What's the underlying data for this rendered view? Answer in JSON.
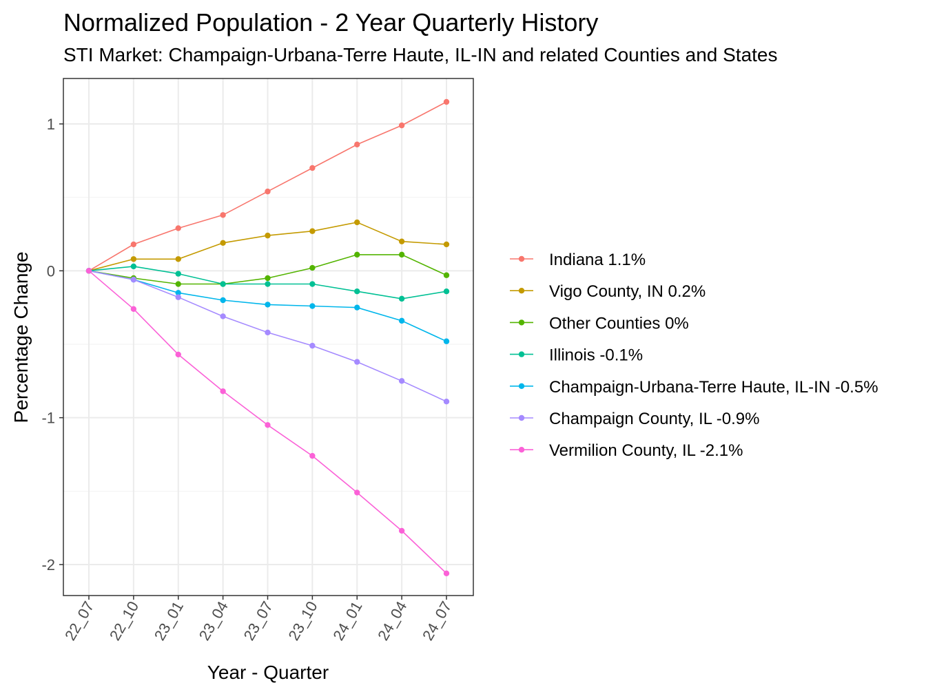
{
  "chart_data": {
    "type": "line",
    "title": "Normalized Population - 2 Year Quarterly History",
    "subtitle": "STI Market: Champaign-Urbana-Terre Haute, IL-IN and related Counties and States",
    "xlabel": "Year - Quarter",
    "ylabel": "Percentage Change",
    "categories": [
      "22_07",
      "22_10",
      "23_01",
      "23_04",
      "23_07",
      "23_10",
      "24_01",
      "24_04",
      "24_07"
    ],
    "ylim": [
      -2.2,
      1.3
    ],
    "yticks": [
      {
        "value": 1,
        "label": "1"
      },
      {
        "value": 0,
        "label": "0"
      },
      {
        "value": -1,
        "label": "-1"
      },
      {
        "value": -2,
        "label": "-2"
      }
    ],
    "grid": true,
    "legend_position": "right",
    "series": [
      {
        "name": "Indiana 1.1%",
        "color": "#F8766D",
        "values": [
          0,
          0.18,
          0.29,
          0.38,
          0.54,
          0.7,
          0.86,
          0.99,
          1.15
        ]
      },
      {
        "name": "Vigo County, IN 0.2%",
        "color": "#C49A00",
        "values": [
          0,
          0.08,
          0.08,
          0.19,
          0.24,
          0.27,
          0.33,
          0.2,
          0.18
        ]
      },
      {
        "name": "Other Counties 0%",
        "color": "#53B400",
        "values": [
          0,
          -0.05,
          -0.09,
          -0.09,
          -0.05,
          0.02,
          0.11,
          0.11,
          -0.03
        ]
      },
      {
        "name": "Illinois -0.1%",
        "color": "#00C094",
        "values": [
          0,
          0.03,
          -0.02,
          -0.09,
          -0.09,
          -0.09,
          -0.14,
          -0.19,
          -0.14
        ]
      },
      {
        "name": "Champaign-Urbana-Terre Haute, IL-IN -0.5%",
        "color": "#00B6EB",
        "values": [
          0,
          -0.06,
          -0.15,
          -0.2,
          -0.23,
          -0.24,
          -0.25,
          -0.34,
          -0.48
        ]
      },
      {
        "name": "Champaign County, IL -0.9%",
        "color": "#A58AFF",
        "values": [
          0,
          -0.06,
          -0.18,
          -0.31,
          -0.42,
          -0.51,
          -0.62,
          -0.75,
          -0.89
        ]
      },
      {
        "name": "Vermilion County, IL -2.1%",
        "color": "#FB61D7",
        "values": [
          0,
          -0.26,
          -0.57,
          -0.82,
          -1.05,
          -1.26,
          -1.51,
          -1.77,
          -2.06
        ]
      }
    ]
  }
}
